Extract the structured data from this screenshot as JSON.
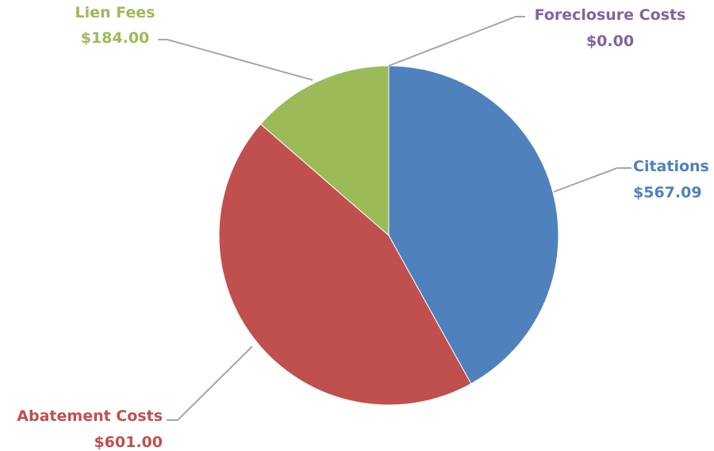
{
  "chart_data": {
    "type": "pie",
    "title": "",
    "legend": "none",
    "start_angle_deg": 0,
    "direction": "clockwise",
    "slices": [
      {
        "category": "Citations",
        "value": 567.09,
        "value_label": "$567.09",
        "color": "#4F81BD"
      },
      {
        "category": "Abatement Costs",
        "value": 601.0,
        "value_label": "$601.00",
        "color": "#C0504D"
      },
      {
        "category": "Lien Fees",
        "value": 184.0,
        "value_label": "$184.00",
        "color": "#9BBB59"
      },
      {
        "category": "Foreclosure Costs",
        "value": 0.0,
        "value_label": "$0.00",
        "color": "#8064A2"
      }
    ]
  }
}
